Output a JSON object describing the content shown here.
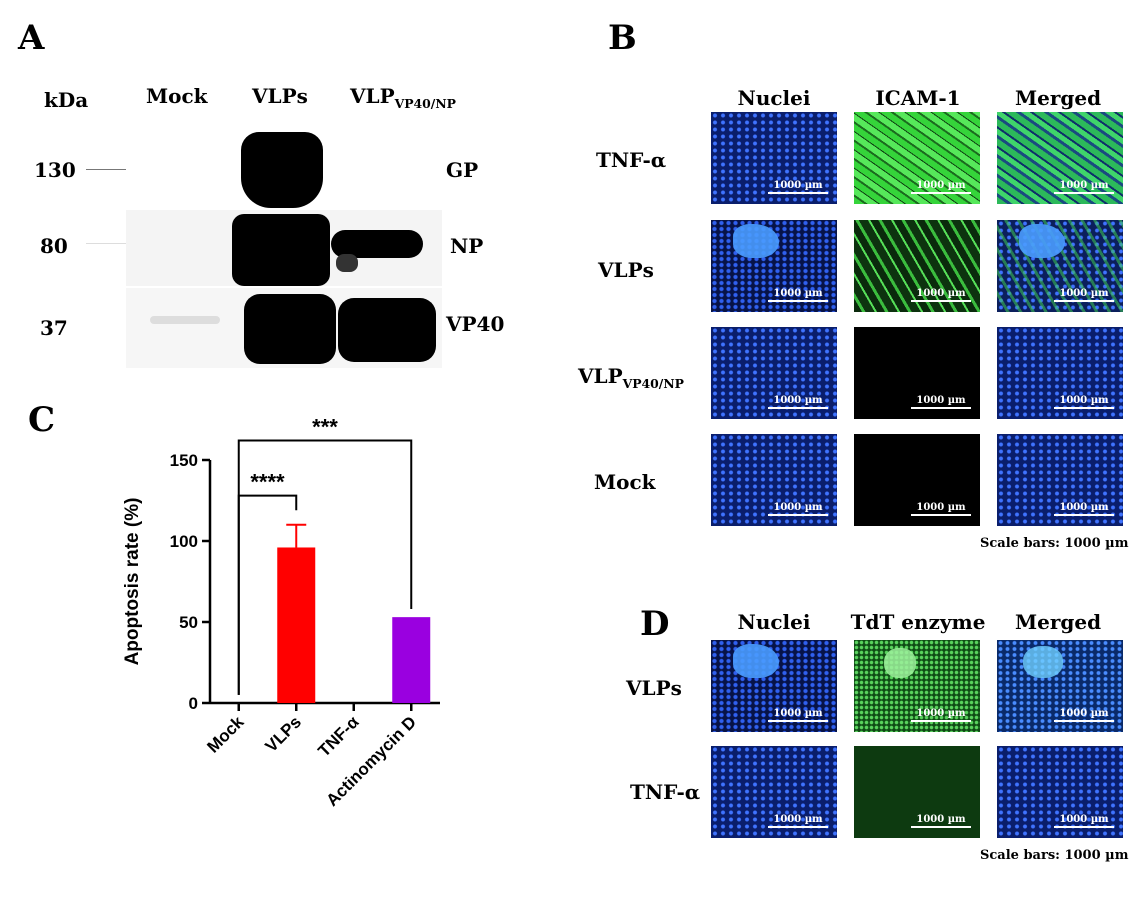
{
  "panels": {
    "A": {
      "letter": "A",
      "kda_label": "kDa",
      "lanes": [
        "Mock",
        "VLPs",
        "VLP"
      ],
      "lane3_subscript": "VP40/NP",
      "markers": [
        "130",
        "80",
        "37"
      ],
      "bands": [
        "GP",
        "NP",
        "VP40"
      ]
    },
    "B": {
      "letter": "B",
      "columns": [
        "Nuclei",
        "ICAM-1",
        "Merged"
      ],
      "rows": [
        "TNF-α",
        "VLPs",
        "VLP",
        "Mock"
      ],
      "row3_subscript": "VP40/NP",
      "tile_scale": "1000 µm",
      "scale_note": "Scale bars: 1000 µm"
    },
    "C": {
      "letter": "C",
      "significance": [
        "****",
        "***"
      ]
    },
    "D": {
      "letter": "D",
      "columns": [
        "Nuclei",
        "TdT enzyme",
        "Merged"
      ],
      "rows": [
        "VLPs",
        "TNF-α"
      ],
      "tile_scale": "1000 µm",
      "scale_note": "Scale bars: 1000 µm"
    }
  },
  "chart_data": {
    "type": "bar",
    "categories": [
      "Mock",
      "VLPs",
      "TNF-α",
      "Actinomycin D"
    ],
    "values": [
      0,
      96,
      0,
      53
    ],
    "errors": [
      0,
      14,
      0,
      0
    ],
    "colors": [
      "#000000",
      "#ff0000",
      "#000000",
      "#9a00e0"
    ],
    "ylabel": "Apoptosis rate (%)",
    "xlabel": "",
    "ylim": [
      0,
      150
    ],
    "yticks": [
      0,
      50,
      100,
      150
    ],
    "comparisons": [
      {
        "from": "Mock",
        "to": "VLPs",
        "label": "****"
      },
      {
        "from": "Mock",
        "to": "Actinomycin D",
        "label": "***"
      }
    ]
  }
}
